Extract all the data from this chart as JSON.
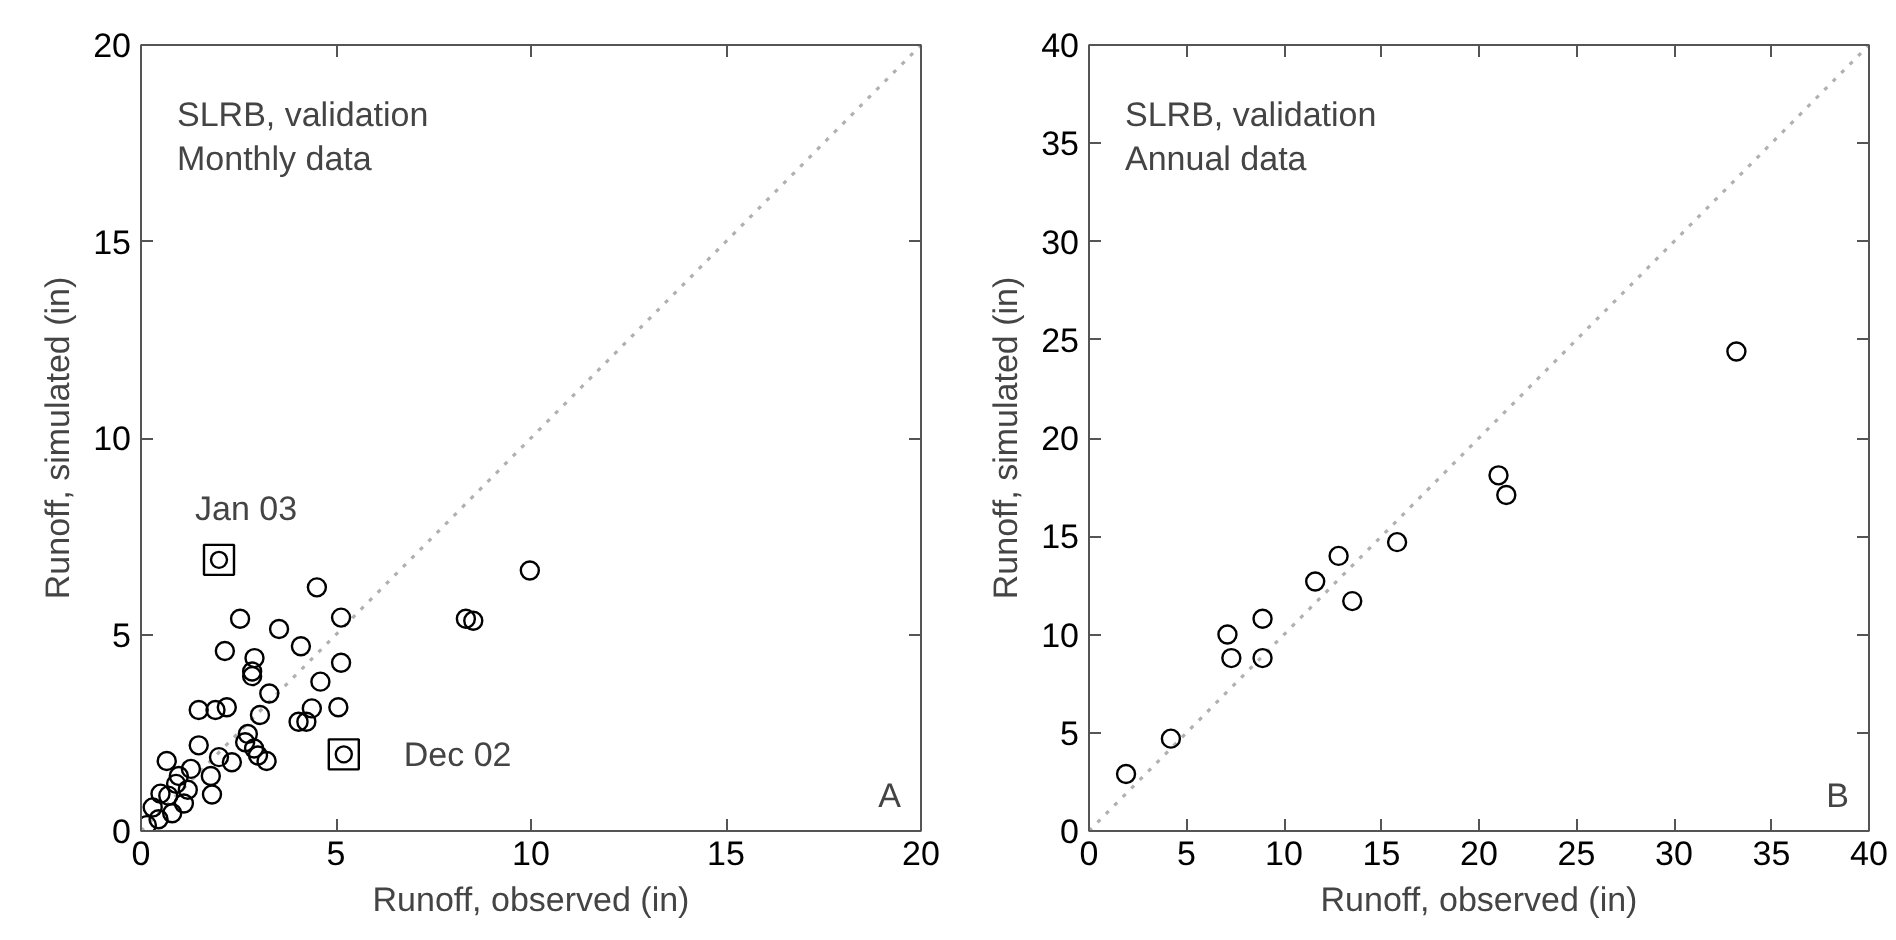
{
  "chart_data": [
    {
      "type": "scatter",
      "xlabel": "Runoff, observed (in)",
      "ylabel": "Runoff, simulated (in)",
      "xlim": [
        0,
        20
      ],
      "ylim": [
        0,
        20
      ],
      "xticks": [
        0,
        5,
        10,
        15,
        20
      ],
      "yticks": [
        0,
        5,
        10,
        15,
        20
      ],
      "annotations": [
        "SLRB, validation",
        "Monthly data",
        "A",
        {
          "text": "Jan 03",
          "x": 2.0,
          "y": 6.9
        },
        {
          "text": "Dec 02",
          "x": 5.2,
          "y": 1.95
        }
      ],
      "series": [
        {
          "type": "line",
          "color": "#b0b0b0",
          "line_style": "dotted",
          "x": [
            0,
            20
          ],
          "values": [
            0,
            20
          ]
        },
        {
          "color": "#000000",
          "marker": "circle",
          "x": [
            9.97,
            8.33,
            8.52,
            4.51,
            5.13,
            2.54,
            3.54,
            2.15,
            4.1,
            2.91,
            2.85,
            2.85,
            5.13,
            3.29,
            4.6,
            1.48,
            1.91,
            2.2,
            3.05,
            4.38,
            5.06,
            4.04,
            4.24,
            2.74,
            2.67,
            2.9,
            1.48,
            2.0,
            2.33,
            3.0,
            3.22,
            0.66,
            1.82,
            1.79,
            0.97,
            1.28,
            0.15,
            0.45,
            0.3,
            0.8,
            0.7,
            1.1,
            0.9,
            1.2,
            0.5
          ],
          "values": [
            6.63,
            5.4,
            5.35,
            6.2,
            5.43,
            5.4,
            5.14,
            4.58,
            4.7,
            4.4,
            4.06,
            3.94,
            4.28,
            3.5,
            3.8,
            3.08,
            3.08,
            3.15,
            2.95,
            3.12,
            3.15,
            2.78,
            2.78,
            2.47,
            2.26,
            2.1,
            2.18,
            1.88,
            1.75,
            1.92,
            1.78,
            1.78,
            0.93,
            1.4,
            1.4,
            1.58,
            0.15,
            0.3,
            0.6,
            0.45,
            0.9,
            0.7,
            1.2,
            1.05,
            0.95
          ]
        },
        {
          "color": "#000000",
          "marker": "square",
          "x": [
            2.0,
            5.2
          ],
          "values": [
            6.9,
            1.95
          ]
        }
      ]
    },
    {
      "type": "scatter",
      "xlabel": "Runoff, observed (in)",
      "ylabel": "Runoff, simulated (in)",
      "xlim": [
        0,
        40
      ],
      "ylim": [
        0,
        40
      ],
      "xticks": [
        0,
        5,
        10,
        15,
        20,
        25,
        30,
        35,
        40
      ],
      "yticks": [
        0,
        5,
        10,
        15,
        20,
        25,
        30,
        35,
        40
      ],
      "annotations": [
        "SLRB, validation",
        "Annual data",
        "B"
      ],
      "series": [
        {
          "type": "line",
          "color": "#b0b0b0",
          "line_style": "dotted",
          "x": [
            0,
            40
          ],
          "values": [
            0,
            40
          ]
        },
        {
          "color": "#000000",
          "marker": "circle",
          "x": [
            1.9,
            4.2,
            7.1,
            7.3,
            8.9,
            8.9,
            11.6,
            12.8,
            13.5,
            15.8,
            21.0,
            21.4,
            33.2
          ],
          "values": [
            2.9,
            4.7,
            10.0,
            8.8,
            10.8,
            8.8,
            12.7,
            14.0,
            11.7,
            14.7,
            18.1,
            17.1,
            24.4
          ]
        }
      ]
    }
  ]
}
